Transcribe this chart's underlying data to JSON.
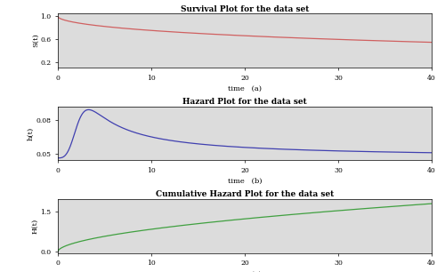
{
  "title1": "Survival Plot for the data set",
  "title2": "Hazard Plot for the data set",
  "title3": "Cumulative Hazard Plot for the data set",
  "xlabel1": "time   (a)",
  "xlabel2": "time   (b)",
  "xlabel3": "time   (c)",
  "ylabel1": "S(t)",
  "ylabel2": "h(t)",
  "ylabel3": "H(t)",
  "xlim": [
    0,
    40
  ],
  "ylim1": [
    0.1,
    1.05
  ],
  "ylim2": [
    0.044,
    0.092
  ],
  "ylim3": [
    -0.05,
    1.95
  ],
  "yticks1": [
    0.2,
    0.6,
    1.0
  ],
  "yticks2": [
    0.05,
    0.08
  ],
  "yticks3": [
    0.0,
    1.5
  ],
  "xticks": [
    0,
    10,
    20,
    30,
    40
  ],
  "color1": "#d06060",
  "color2": "#4040b0",
  "color3": "#40a040",
  "bg_color": "#dcdcdc"
}
